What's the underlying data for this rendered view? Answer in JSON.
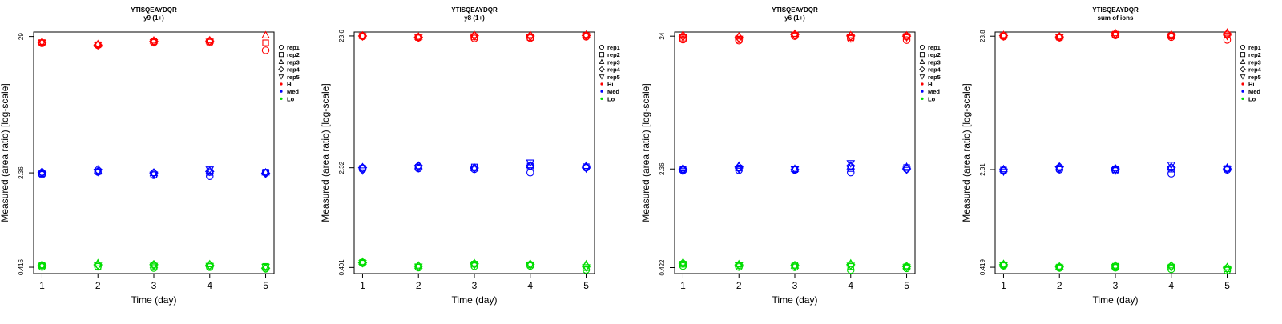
{
  "chart_data": [
    {
      "type": "scatter",
      "title": "YTISQEAYDQR",
      "subtitle": "y9 (1+)",
      "xlabel": "Time (day)",
      "ylabel": "Measured (area ratio) [log-scale]",
      "log_y": true,
      "xticks": [
        1,
        2,
        3,
        4,
        5
      ],
      "yticks": [
        0.416,
        2.36,
        29
      ],
      "ytick_labels": [
        "0.416",
        "2.36",
        "29"
      ],
      "ylim": [
        0.37,
        31.5
      ],
      "xlim": [
        0.85,
        5.15
      ],
      "series": [
        {
          "name": "Hi",
          "color": "#ff0000",
          "points": [
            [
              1,
              [
                25.6,
                25.9,
                26.2,
                25.8,
                26.0
              ]
            ],
            [
              2,
              [
                24.7,
                24.9,
                25.1,
                24.8,
                25.0
              ]
            ],
            [
              3,
              [
                26.0,
                26.4,
                26.8,
                26.6,
                26.2
              ]
            ],
            [
              4,
              [
                25.9,
                26.3,
                26.9,
                26.7,
                26.4
              ]
            ],
            [
              5,
              [
                22.5,
                25.8,
                29.5,
                null,
                null
              ]
            ]
          ]
        },
        {
          "name": "Med",
          "color": "#0000ff",
          "points": [
            [
              1,
              [
                2.29,
                2.33,
                2.36,
                2.39,
                2.31
              ]
            ],
            [
              2,
              [
                2.4,
                2.42,
                2.44,
                2.5,
                2.41
              ]
            ],
            [
              3,
              [
                2.26,
                2.28,
                2.34,
                2.36,
                2.3
              ]
            ],
            [
              4,
              [
                2.22,
                2.38,
                2.44,
                2.42,
                2.52
              ]
            ],
            [
              5,
              [
                2.36,
                2.39,
                2.37,
                2.34,
                2.38
              ]
            ]
          ]
        },
        {
          "name": "Lo",
          "color": "#00dd00",
          "points": [
            [
              1,
              [
                0.418,
                0.428,
                0.43,
                0.432,
                0.425
              ]
            ],
            [
              2,
              [
                0.42,
                0.422,
                0.446,
                0.435,
                0.43
              ]
            ],
            [
              3,
              [
                0.41,
                0.425,
                0.433,
                0.436,
                0.428
              ]
            ],
            [
              4,
              [
                0.417,
                0.425,
                0.438,
                0.433,
                0.427
              ]
            ],
            [
              5,
              [
                0.405,
                0.422,
                0.412,
                0.409,
                0.42
              ]
            ]
          ]
        }
      ]
    },
    {
      "type": "scatter",
      "title": "YTISQEAYDQR",
      "subtitle": "y8 (1+)",
      "xlabel": "Time (day)",
      "ylabel": "Measured (area ratio) [log-scale]",
      "log_y": true,
      "xticks": [
        1,
        2,
        3,
        4,
        5
      ],
      "yticks": [
        0.401,
        2.32,
        23.6
      ],
      "ytick_labels": [
        "0.401",
        "2.32",
        "23.6"
      ],
      "ylim": [
        0.36,
        25.3
      ],
      "xlim": [
        0.85,
        5.15
      ],
      "series": [
        {
          "name": "Hi",
          "color": "#ff0000",
          "points": [
            [
              1,
              [
                23.4,
                23.6,
                23.7,
                23.6,
                23.5
              ]
            ],
            [
              2,
              [
                22.9,
                23.0,
                23.2,
                23.1,
                23.0
              ]
            ],
            [
              3,
              [
                22.6,
                23.2,
                23.9,
                23.7,
                23.5
              ]
            ],
            [
              4,
              [
                22.7,
                23.0,
                23.9,
                23.6,
                23.2
              ]
            ],
            [
              5,
              [
                23.3,
                23.8,
                24.0,
                23.8,
                23.6
              ]
            ]
          ]
        },
        {
          "name": "Med",
          "color": "#0000ff",
          "points": [
            [
              1,
              [
                2.26,
                2.3,
                2.33,
                2.32,
                2.22
              ]
            ],
            [
              2,
              [
                2.29,
                2.34,
                2.38,
                2.4,
                2.31
              ]
            ],
            [
              3,
              [
                2.26,
                2.35,
                2.3,
                2.31,
                2.28
              ]
            ],
            [
              4,
              [
                2.13,
                2.39,
                2.42,
                2.4,
                2.55
              ]
            ],
            [
              5,
              [
                2.32,
                2.36,
                2.39,
                2.34,
                2.3
              ]
            ]
          ]
        },
        {
          "name": "Lo",
          "color": "#00dd00",
          "points": [
            [
              1,
              [
                0.432,
                0.438,
                0.442,
                0.436,
                0.435
              ]
            ],
            [
              2,
              [
                0.4,
                0.406,
                0.413,
                0.41,
                0.408
              ]
            ],
            [
              3,
              [
                0.41,
                0.425,
                0.43,
                0.428,
                0.42
              ]
            ],
            [
              4,
              [
                0.412,
                0.42,
                0.426,
                0.424,
                0.418
              ]
            ],
            [
              5,
              [
                0.385,
                0.4,
                0.422,
                0.41,
                0.404
              ]
            ]
          ]
        }
      ]
    },
    {
      "type": "scatter",
      "title": "YTISQEAYDQR",
      "subtitle": "y6 (1+)",
      "xlabel": "Time (day)",
      "ylabel": "Measured (area ratio) [log-scale]",
      "log_y": true,
      "xticks": [
        1,
        2,
        3,
        4,
        5
      ],
      "yticks": [
        0.422,
        2.36,
        24
      ],
      "ytick_labels": [
        "0.422",
        "2.36",
        "24"
      ],
      "ylim": [
        0.38,
        25.8
      ],
      "xlim": [
        0.85,
        5.15
      ],
      "series": [
        {
          "name": "Hi",
          "color": "#ff0000",
          "points": [
            [
              1,
              [
                22.6,
                23.2,
                24.5,
                24.0,
                23.6
              ]
            ],
            [
              2,
              [
                22.2,
                22.6,
                23.8,
                23.4,
                23.0
              ]
            ],
            [
              3,
              [
                24.0,
                24.5,
                24.9,
                24.6,
                24.3
              ]
            ],
            [
              4,
              [
                22.9,
                23.4,
                24.3,
                24.1,
                23.6
              ]
            ],
            [
              5,
              [
                22.4,
                23.9,
                24.2,
                24.0,
                23.6
              ]
            ]
          ]
        },
        {
          "name": "Med",
          "color": "#0000ff",
          "points": [
            [
              1,
              [
                2.3,
                2.34,
                2.38,
                2.36,
                2.28
              ]
            ],
            [
              2,
              [
                2.31,
                2.4,
                2.49,
                2.44,
                2.36
              ]
            ],
            [
              3,
              [
                2.32,
                2.34,
                2.36,
                2.33,
                2.35
              ]
            ],
            [
              4,
              [
                2.22,
                2.38,
                2.46,
                2.49,
                2.62
              ]
            ],
            [
              5,
              [
                2.36,
                2.42,
                2.44,
                2.37,
                2.33
              ]
            ]
          ]
        },
        {
          "name": "Lo",
          "color": "#00dd00",
          "points": [
            [
              1,
              [
                0.434,
                0.448,
                0.46,
                0.455,
                0.45
              ]
            ],
            [
              2,
              [
                0.426,
                0.436,
                0.446,
                0.442,
                0.44
              ]
            ],
            [
              3,
              [
                0.425,
                0.44,
                0.435,
                0.438,
                0.43
              ]
            ],
            [
              4,
              [
                0.405,
                0.43,
                0.452,
                0.444,
                0.438
              ]
            ],
            [
              5,
              [
                0.417,
                0.428,
                0.432,
                0.43,
                0.426
              ]
            ]
          ]
        }
      ]
    },
    {
      "type": "scatter",
      "title": "YTISQEAYDQR",
      "subtitle": "sum of ions",
      "xlabel": "Time (day)",
      "ylabel": "Measured (area ratio) [log-scale]",
      "log_y": true,
      "xticks": [
        1,
        2,
        3,
        4,
        5
      ],
      "yticks": [
        0.419,
        2.31,
        23.8
      ],
      "ytick_labels": [
        "0.419",
        "2.31",
        "23.8"
      ],
      "ylim": [
        0.375,
        25.6
      ],
      "xlim": [
        0.85,
        5.15
      ],
      "series": [
        {
          "name": "Hi",
          "color": "#ff0000",
          "points": [
            [
              1,
              [
                23.6,
                23.9,
                24.2,
                24.0,
                23.8
              ]
            ],
            [
              2,
              [
                23.2,
                23.4,
                23.6,
                23.5,
                23.4
              ]
            ],
            [
              3,
              [
                24.1,
                24.6,
                25.0,
                24.8,
                24.4
              ]
            ],
            [
              4,
              [
                23.4,
                23.9,
                24.4,
                24.2,
                23.8
              ]
            ],
            [
              5,
              [
                22.3,
                24.4,
                25.2,
                24.6,
                24.0
              ]
            ]
          ]
        },
        {
          "name": "Med",
          "color": "#0000ff",
          "points": [
            [
              1,
              [
                2.26,
                2.29,
                2.32,
                2.3,
                2.24
              ]
            ],
            [
              2,
              [
                2.31,
                2.36,
                2.4,
                2.42,
                2.33
              ]
            ],
            [
              3,
              [
                2.26,
                2.31,
                2.35,
                2.34,
                2.29
              ]
            ],
            [
              4,
              [
                2.15,
                2.33,
                2.42,
                2.4,
                2.52
              ]
            ],
            [
              5,
              [
                2.3,
                2.35,
                2.38,
                2.34,
                2.32
              ]
            ]
          ]
        },
        {
          "name": "Lo",
          "color": "#00dd00",
          "points": [
            [
              1,
              [
                0.43,
                0.437,
                0.442,
                0.438,
                0.434
              ]
            ],
            [
              2,
              [
                0.414,
                0.42,
                0.423,
                0.421,
                0.418
              ]
            ],
            [
              3,
              [
                0.415,
                0.426,
                0.43,
                0.428,
                0.422
              ]
            ],
            [
              4,
              [
                0.405,
                0.42,
                0.432,
                0.428,
                0.418
              ]
            ],
            [
              5,
              [
                0.395,
                0.408,
                0.418,
                0.414,
                0.405
              ]
            ]
          ]
        }
      ]
    }
  ],
  "legend": {
    "placement": "right",
    "replicates": [
      {
        "label": "rep1",
        "marker": "circle"
      },
      {
        "label": "rep2",
        "marker": "square"
      },
      {
        "label": "rep3",
        "marker": "triangle-up"
      },
      {
        "label": "rep4",
        "marker": "diamond"
      },
      {
        "label": "rep5",
        "marker": "triangle-down"
      }
    ],
    "levels": [
      {
        "label": "Hi",
        "color": "#ff0000"
      },
      {
        "label": "Med",
        "color": "#0000ff"
      },
      {
        "label": "Lo",
        "color": "#00dd00"
      }
    ]
  }
}
